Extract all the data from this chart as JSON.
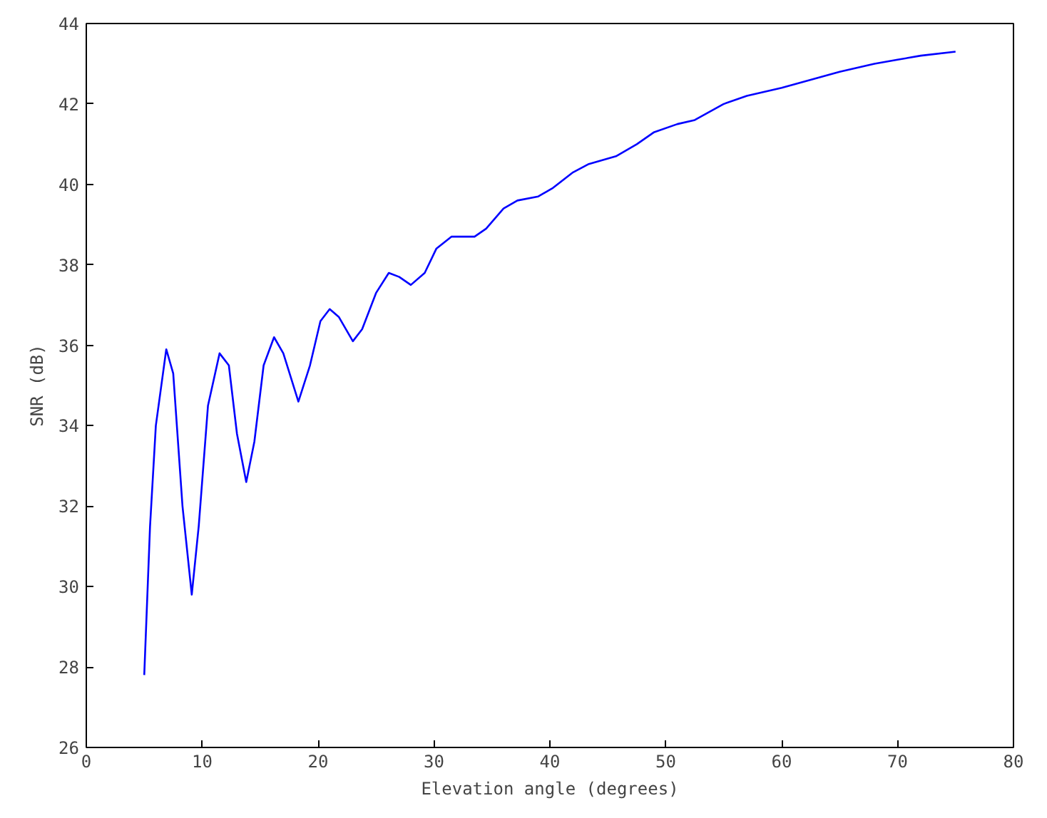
{
  "chart_data": {
    "type": "line",
    "xlabel": "Elevation angle (degrees)",
    "ylabel": "SNR (dB)",
    "xlim": [
      0,
      80
    ],
    "xticks": [
      0,
      10,
      20,
      30,
      40,
      50,
      60,
      70,
      80
    ],
    "ylim": [
      26,
      44
    ],
    "yticks": [
      26,
      28,
      30,
      32,
      34,
      36,
      38,
      40,
      42,
      44
    ],
    "series": [
      {
        "color": "#0000ff",
        "x": [
          5,
          5.5,
          6,
          6.9,
          7.5,
          8.3,
          9.1,
          9.7,
          10.5,
          11.5,
          12.3,
          13,
          13.8,
          14.5,
          15.3,
          16.2,
          17,
          18.3,
          19.3,
          20.2,
          21,
          21.8,
          23,
          23.8,
          25,
          26.1,
          27,
          28,
          29.2,
          30.2,
          31.5,
          33.5,
          34.5,
          36,
          37.2,
          39,
          40.2,
          42,
          43.3,
          45.7,
          47.5,
          49,
          51,
          52.5,
          55,
          57,
          60,
          62.5,
          65,
          68,
          70,
          72,
          75
        ],
        "values": [
          27.8,
          31.5,
          34,
          35.9,
          35.3,
          32,
          29.8,
          31.5,
          34.5,
          35.8,
          35.5,
          33.8,
          32.6,
          33.6,
          35.5,
          36.2,
          35.8,
          34.6,
          35.5,
          36.6,
          36.9,
          36.7,
          36.1,
          36.4,
          37.3,
          37.8,
          37.7,
          37.5,
          37.8,
          38.4,
          38.7,
          38.7,
          38.9,
          39.4,
          39.6,
          39.7,
          39.9,
          40.3,
          40.5,
          40.7,
          41,
          41.3,
          41.5,
          41.6,
          42,
          42.2,
          42.4,
          42.6,
          42.8,
          43,
          43.1,
          43.2,
          43.3
        ]
      }
    ]
  }
}
